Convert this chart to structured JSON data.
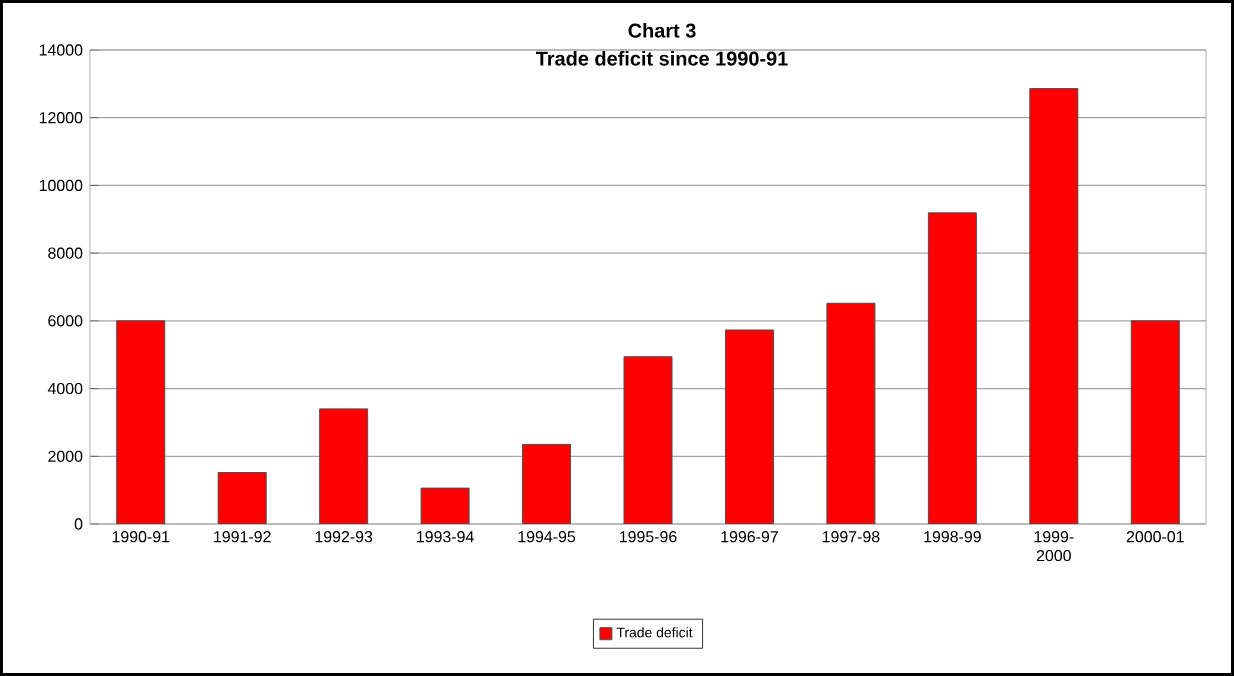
{
  "chart_data": {
    "type": "bar",
    "title": "Chart 3",
    "subtitle": "Trade deficit since 1990-91",
    "categories": [
      "1990-91",
      "1991-92",
      "1992-93",
      "1993-94",
      "1994-95",
      "1995-96",
      "1996-97",
      "1997-98",
      "1998-99",
      "1999-2000",
      "2000-01"
    ],
    "series": [
      {
        "name": "Trade deficit",
        "color": "#ff0000",
        "values": [
          6000,
          1520,
          3400,
          1060,
          2350,
          4940,
          5730,
          6520,
          9190,
          12860,
          6000
        ]
      }
    ],
    "ylim": [
      0,
      14000
    ],
    "yticks": [
      0,
      2000,
      4000,
      6000,
      8000,
      10000,
      12000,
      14000
    ],
    "grid": "y",
    "legend": "bottom"
  }
}
